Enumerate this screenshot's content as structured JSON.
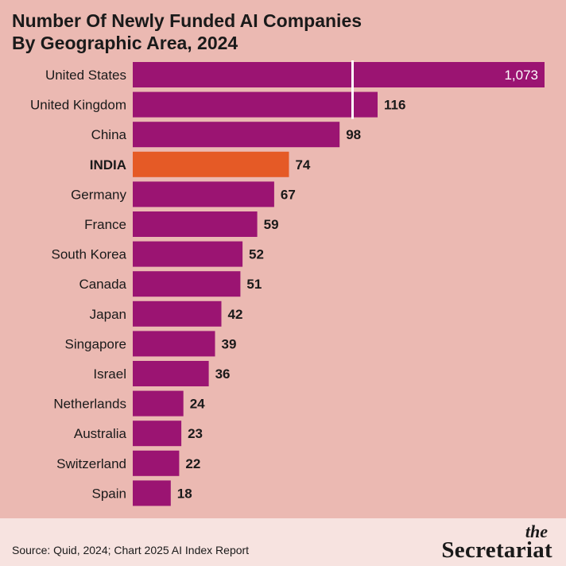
{
  "title_line1": "Number Of Newly Funded AI Companies",
  "title_line2": "By Geographic Area, 2024",
  "source": "Source: Quid, 2024; Chart 2025 AI Index Report",
  "logo": {
    "the": "the",
    "word": "Secretariat"
  },
  "colors": {
    "background": "#ebb9b2",
    "bar": "#9b1472",
    "highlight": "#e55a26",
    "footer": "#f7e3e0",
    "text": "#1a1a1a"
  },
  "chart_data": {
    "type": "bar",
    "orientation": "horizontal",
    "axis_break": true,
    "categories": [
      "United States",
      "United Kingdom",
      "China",
      "INDIA",
      "Germany",
      "France",
      "South Korea",
      "Canada",
      "Japan",
      "Singapore",
      "Israel",
      "Netherlands",
      "Australia",
      "Switzerland",
      "Spain"
    ],
    "values": [
      1073,
      116,
      98,
      74,
      67,
      59,
      52,
      51,
      42,
      39,
      36,
      24,
      23,
      22,
      18
    ],
    "value_labels": [
      "1,073",
      "116",
      "98",
      "74",
      "67",
      "59",
      "52",
      "51",
      "42",
      "39",
      "36",
      "24",
      "23",
      "22",
      "18"
    ],
    "highlight": "INDIA"
  }
}
